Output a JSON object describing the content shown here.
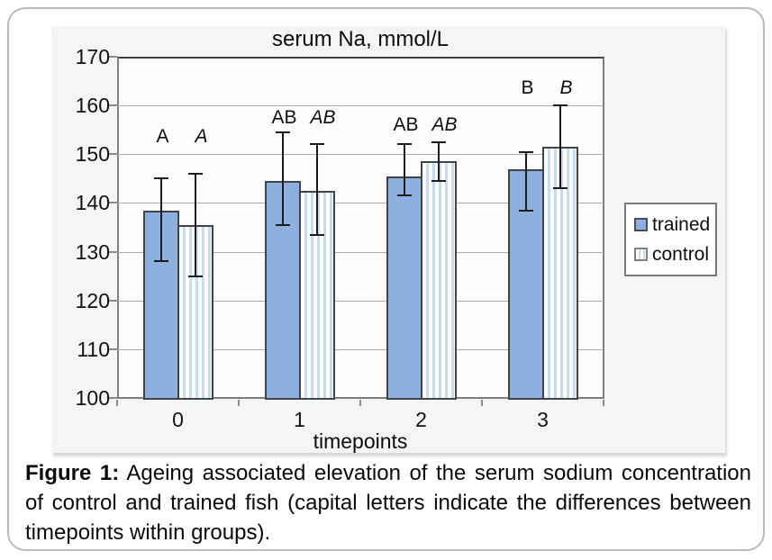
{
  "figure": {
    "caption_label": "Figure 1:",
    "caption_text": " Ageing associated elevation of the serum sodium concentration of control and trained fish (capital letters indicate the differences between timepoints within groups)."
  },
  "chart_data": {
    "type": "bar",
    "title": "serum Na, mmol/L",
    "xlabel": "timepoints",
    "ylabel": "",
    "categories": [
      "0",
      "1",
      "2",
      "3"
    ],
    "ylim": [
      100,
      170
    ],
    "yticks": [
      100,
      110,
      120,
      130,
      140,
      150,
      160,
      170
    ],
    "grid": true,
    "legend_position": "right",
    "series": [
      {
        "name": "trained",
        "values": [
          138.5,
          144.5,
          145.5,
          147
        ],
        "err_high": [
          145,
          154.5,
          152,
          150.5
        ],
        "err_low": [
          128,
          135.5,
          141.5,
          138.5
        ],
        "point_labels": [
          "A",
          "AB",
          "AB",
          "B"
        ],
        "label_style": "normal",
        "fill": "#8DB0E0",
        "pattern": "solid"
      },
      {
        "name": "control",
        "values": [
          135.5,
          142.5,
          148.5,
          151.5
        ],
        "err_high": [
          146,
          152,
          152.5,
          160
        ],
        "err_low": [
          125,
          133.5,
          144.5,
          143
        ],
        "point_labels": [
          "A",
          "AB",
          "AB",
          "B"
        ],
        "label_style": "italic",
        "fill": "#C9DBEE",
        "pattern": "vertical-stripes"
      }
    ],
    "annotation_row_values": [
      153.5,
      157.5,
      156,
      163.5
    ],
    "colors": {
      "trained_fill": "#8DB0E0",
      "control_stripe": "#C9DBEE",
      "bar_border": "#3F4447",
      "gridline": "#A9ABAD",
      "error_bar": "#1C1C1C",
      "chart_background": "#F4F5F6",
      "text": "#0D0D0D"
    }
  }
}
